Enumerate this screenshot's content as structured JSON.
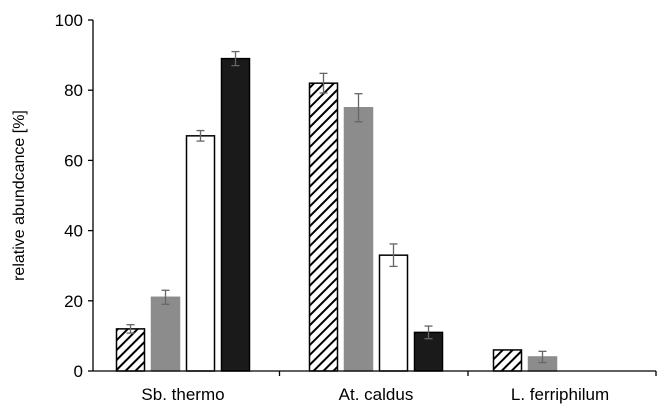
{
  "chart_data": {
    "type": "bar",
    "title": "",
    "xlabel": "",
    "ylabel": "relative abundcance [%]",
    "ylim": [
      0,
      100
    ],
    "yticks": [
      0,
      20,
      40,
      60,
      80,
      100
    ],
    "grid": false,
    "legend": "none",
    "categories": [
      "Sb. thermo",
      "At. caldus",
      "L. ferriphilum"
    ],
    "series": [
      {
        "style": "hatched",
        "colors": {
          "fill": "#ffffff",
          "stroke": "#000000",
          "hatch": "#000000"
        },
        "values": [
          12,
          82,
          6
        ],
        "errors": [
          1.2,
          2.8,
          null
        ]
      },
      {
        "style": "gray",
        "colors": {
          "fill": "#8c8c8c",
          "stroke": "#8c8c8c"
        },
        "values": [
          21,
          75,
          4
        ],
        "errors": [
          2.0,
          4.0,
          1.6
        ]
      },
      {
        "style": "white",
        "colors": {
          "fill": "#ffffff",
          "stroke": "#000000"
        },
        "values": [
          67,
          33,
          0
        ],
        "errors": [
          1.5,
          3.2,
          null
        ]
      },
      {
        "style": "black",
        "colors": {
          "fill": "#1a1a1a",
          "stroke": "#000000"
        },
        "values": [
          89,
          11,
          0
        ],
        "errors": [
          2.0,
          1.8,
          null
        ]
      }
    ],
    "error_bar_color": "#666666",
    "axis_color": "#000000"
  }
}
